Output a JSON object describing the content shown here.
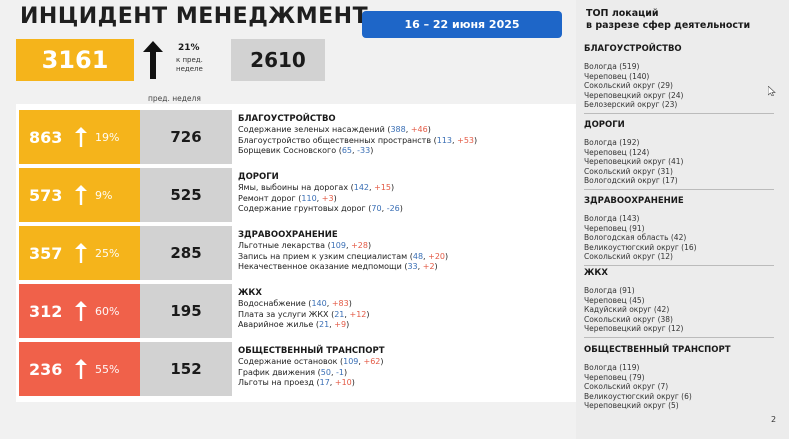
{
  "header": {
    "title": "ИНЦИДЕНТ МЕНЕДЖМЕНТ",
    "date_range": "16 – 22 июня 2025"
  },
  "summary": {
    "total": "3161",
    "growth_pct": "21%",
    "growth_note_1": "к пред.",
    "growth_note_2": "неделе",
    "prev_total": "2610",
    "prev_week_label": "пред. неделя"
  },
  "colors": {
    "amber": "#f5b41b",
    "red": "#f0614a",
    "gray": "#d2d2d2",
    "blue": "#1e66c8"
  },
  "categories": [
    {
      "current": "863",
      "pct": "19%",
      "prev": "726",
      "color": "amber",
      "title": "БЛАГОУСТРОЙСТВО",
      "items": [
        {
          "name": "Содержание зеленых насаждений",
          "n": "388",
          "d": "+46"
        },
        {
          "name": "Благоустройство общественных пространств",
          "n": "113",
          "d": "+53"
        },
        {
          "name": "Борщевик Сосновского",
          "n": "65",
          "d": "-33"
        }
      ]
    },
    {
      "current": "573",
      "pct": "9%",
      "prev": "525",
      "color": "amber",
      "title": "ДОРОГИ",
      "items": [
        {
          "name": "Ямы, выбоины на дорогах",
          "n": "142",
          "d": "+15"
        },
        {
          "name": "Ремонт дорог",
          "n": "110",
          "d": "+3"
        },
        {
          "name": "Содержание грунтовых дорог",
          "n": "70",
          "d": "-26"
        }
      ]
    },
    {
      "current": "357",
      "pct": "25%",
      "prev": "285",
      "color": "amber",
      "title": "ЗДРАВООХРАНЕНИЕ",
      "items": [
        {
          "name": "Льготные лекарства",
          "n": "109",
          "d": "+28"
        },
        {
          "name": "Запись на прием к узким специалистам",
          "n": "48",
          "d": "+20"
        },
        {
          "name": "Некачественное оказание медпомощи",
          "n": "33",
          "d": "+2"
        }
      ]
    },
    {
      "current": "312",
      "pct": "60%",
      "prev": "195",
      "color": "red",
      "title": "ЖКХ",
      "items": [
        {
          "name": "Водоснабжение",
          "n": "140",
          "d": "+83"
        },
        {
          "name": "Плата за услуги ЖКХ",
          "n": "21",
          "d": "+12"
        },
        {
          "name": "Аварийное жилье",
          "n": "21",
          "d": "+9"
        }
      ]
    },
    {
      "current": "236",
      "pct": "55%",
      "prev": "152",
      "color": "red",
      "title": "ОБЩЕСТВЕННЫЙ ТРАНСПОРТ",
      "items": [
        {
          "name": "Содержание остановок",
          "n": "109",
          "d": "+62"
        },
        {
          "name": "График движения",
          "n": "50",
          "d": "-1"
        },
        {
          "name": "Льготы на проезд",
          "n": "17",
          "d": "+10"
        }
      ]
    }
  ],
  "top_locations": {
    "header_1": "ТОП локаций",
    "header_2": "в разрезе сфер деятельности",
    "sections": [
      {
        "title": "БЛАГОУСТРОЙСТВО",
        "items": [
          "Вологда (519)",
          "Череповец (140)",
          "Сокольский округ (29)",
          "Череповецкий округ (24)",
          "Белозерский округ (23)"
        ]
      },
      {
        "title": "ДОРОГИ",
        "items": [
          "Вологда (192)",
          "Череповец (124)",
          "Череповецкий округ (41)",
          "Сокольский округ (31)",
          "Вологодский округ (17)"
        ]
      },
      {
        "title": "ЗДРАВООХРАНЕНИЕ",
        "items": [
          "Вологда (143)",
          "Череповец (91)",
          "Вологодская область (42)",
          "Великоустюгский округ (16)",
          "Сокольский округ (12)"
        ]
      },
      {
        "title": "ЖКХ",
        "items": [
          "Вологда (91)",
          "Череповец (45)",
          "Кадуйский округ (42)",
          "Сокольский округ (38)",
          "Череповецкий округ (12)"
        ]
      },
      {
        "title": "ОБЩЕСТВЕННЫЙ ТРАНСПОРТ",
        "items": [
          "Вологда (119)",
          "Череповец (79)",
          "Сокольский округ (7)",
          "Великоустюгский округ (6)",
          "Череповецкий округ (5)"
        ]
      }
    ]
  },
  "page_number": "2"
}
